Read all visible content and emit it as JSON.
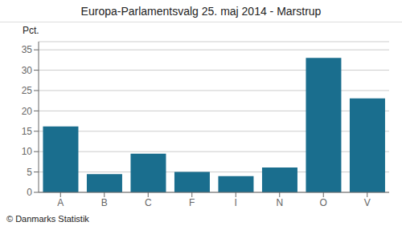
{
  "chart_data": {
    "type": "bar",
    "title": "Europa-Parlamentsvalg 25. maj 2014 - Marstrup",
    "categories": [
      "A",
      "B",
      "C",
      "F",
      "I",
      "N",
      "O",
      "V"
    ],
    "values": [
      16.2,
      4.5,
      9.5,
      5.0,
      4.0,
      6.1,
      33.0,
      23.1
    ],
    "color": "#1a6e8e",
    "ylabel": "Pct.",
    "ylim": [
      0,
      37
    ],
    "yticks": [
      0,
      5,
      10,
      15,
      20,
      25,
      30,
      35
    ],
    "grid": true,
    "annotations": [
      "© Danmarks Statistik"
    ]
  }
}
